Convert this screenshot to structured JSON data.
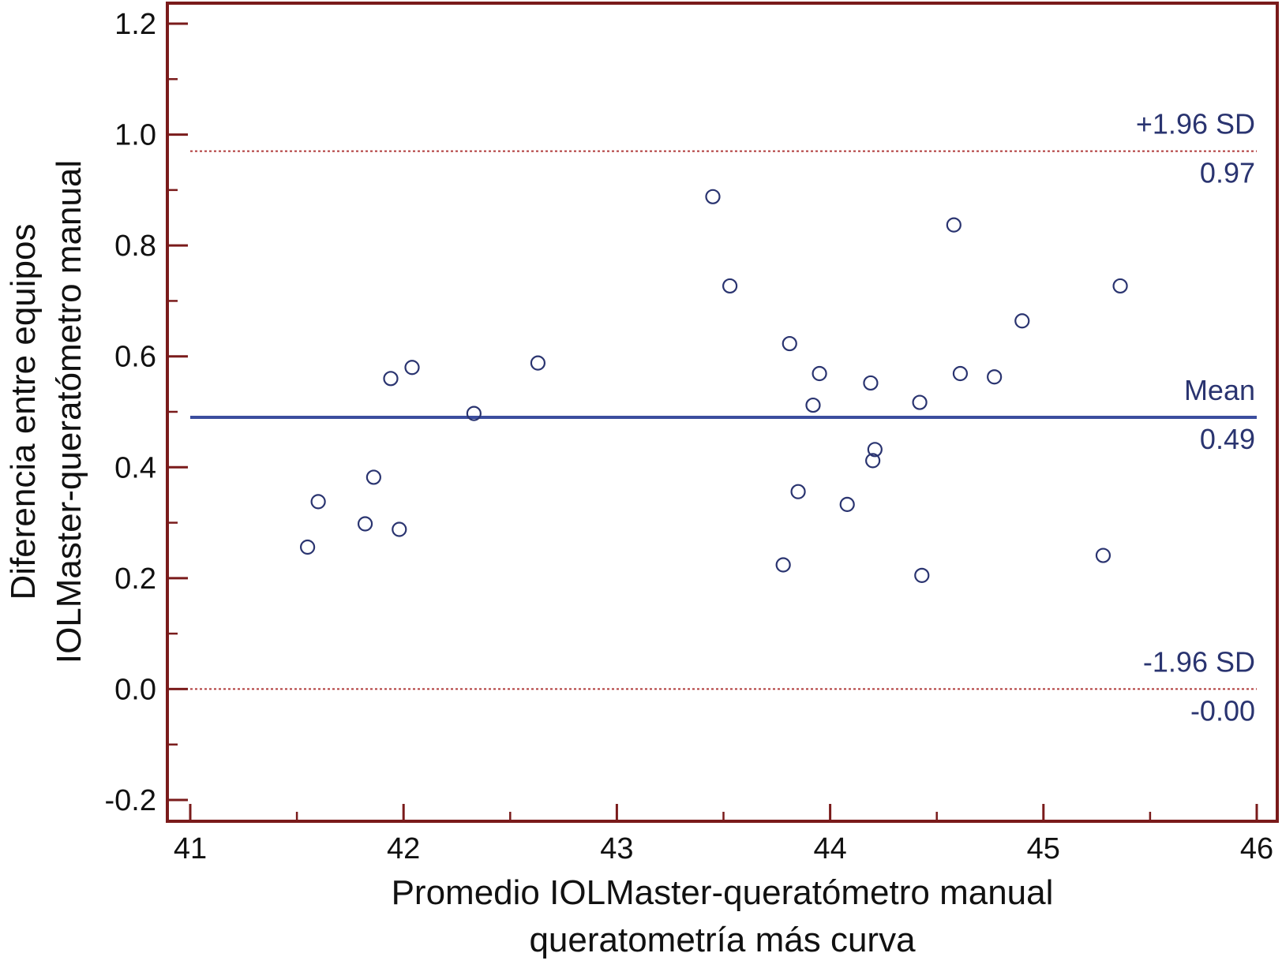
{
  "chart_data": {
    "type": "scatter",
    "title": "",
    "xlabel": [
      "Promedio IOLMaster-queratómetro manual",
      "queratometría más curva"
    ],
    "ylabel": [
      "Diferencia entre equipos",
      "IOLMaster-queratómetro manual"
    ],
    "xlim": [
      41,
      46
    ],
    "ylim": [
      -0.24,
      1.24
    ],
    "x_ticks": [
      "41",
      "42",
      "43",
      "44",
      "45",
      "46"
    ],
    "y_ticks": [
      "-0.2",
      "0.0",
      "0.2",
      "0.4",
      "0.6",
      "0.8",
      "1.0",
      "1.2"
    ],
    "grid": false,
    "points": {
      "x": [
        41.55,
        41.6,
        41.82,
        41.86,
        41.94,
        41.98,
        42.04,
        42.33,
        42.63,
        43.45,
        43.53,
        43.78,
        43.81,
        43.85,
        43.92,
        43.95,
        44.08,
        44.19,
        44.2,
        44.21,
        44.42,
        44.43,
        44.58,
        44.61,
        44.77,
        44.9,
        45.28,
        45.36
      ],
      "y": [
        0.256,
        0.338,
        0.298,
        0.382,
        0.56,
        0.288,
        0.58,
        0.497,
        0.588,
        0.888,
        0.727,
        0.224,
        0.623,
        0.356,
        0.512,
        0.569,
        0.333,
        0.552,
        0.412,
        0.432,
        0.517,
        0.205,
        0.837,
        0.569,
        0.563,
        0.664,
        0.241,
        0.727
      ]
    },
    "reference_lines": [
      {
        "name": "+1.96 SD",
        "value": 0.97,
        "value_label": "0.97",
        "style": "dotted",
        "color": "#b03a3a"
      },
      {
        "name": "Mean",
        "value": 0.49,
        "value_label": "0.49",
        "style": "solid",
        "color": "#3b4d9e"
      },
      {
        "name": "-1.96 SD",
        "value": 0.0,
        "value_label": "-0.00",
        "style": "dotted",
        "color": "#b03a3a"
      }
    ],
    "colors": {
      "frame": "#7a1b1b",
      "marker": "#2a3470",
      "mean_line": "#3b4d9e",
      "sd_line": "#b03a3a",
      "label_text": "#2a3470"
    }
  }
}
